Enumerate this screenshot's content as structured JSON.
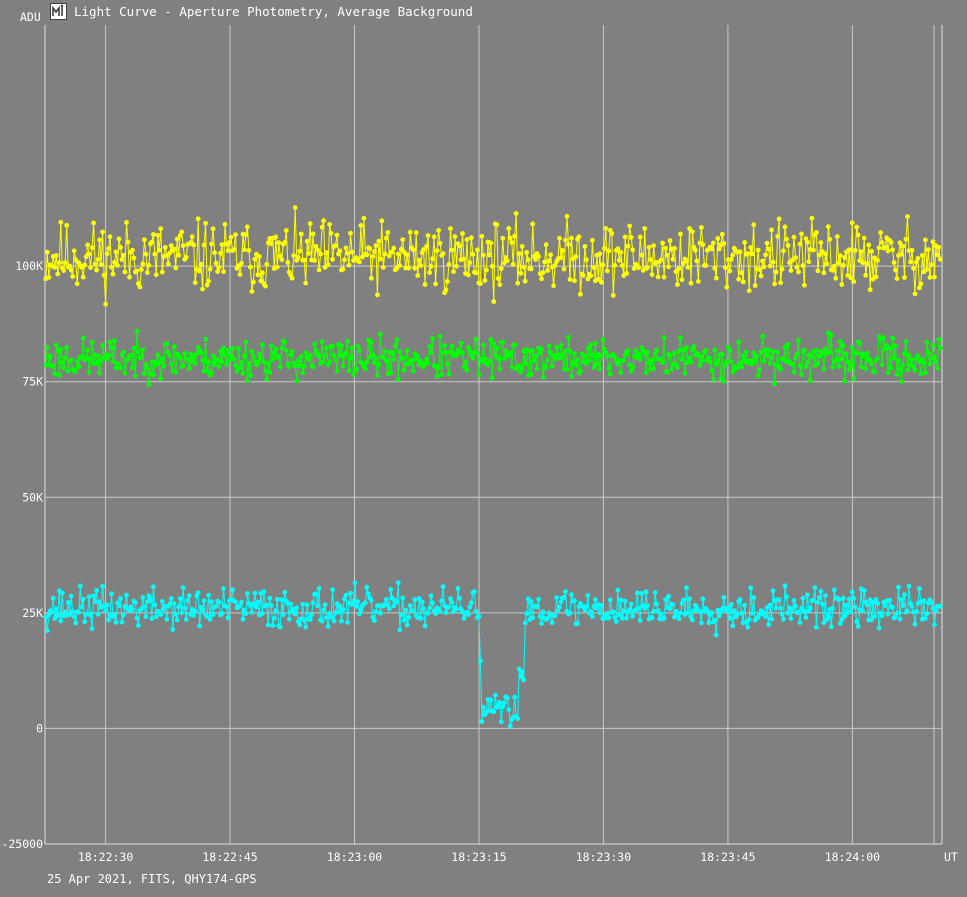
{
  "window": {
    "title": "Light Curve - Aperture Photometry, Average Background",
    "footer": "25 Apr 2021, FITS, QHY174-GPS",
    "icon": "light-curve-app-icon"
  },
  "chart_data": {
    "type": "scatter",
    "title": "Light Curve - Aperture Photometry, Average Background",
    "xlabel": "UT",
    "ylabel": "ADU",
    "xlim": [
      "18:22:22.7",
      "18:24:10.8"
    ],
    "ylim": [
      -25000,
      150000
    ],
    "yticks": [
      -25000,
      0,
      25000,
      50000,
      75000,
      100000
    ],
    "ytick_labels": [
      "-25000",
      "0",
      "25K",
      "50K",
      "75K",
      "100K"
    ],
    "xticks": [
      "18:22:30",
      "18:22:45",
      "18:23:00",
      "18:23:15",
      "18:23:30",
      "18:23:45",
      "18:24:00"
    ],
    "grid": true,
    "series": [
      {
        "color": "#ffff00",
        "points": 600,
        "seed": 11,
        "baseline": 102000,
        "scatter": 7000
      },
      {
        "color": "#00ff00",
        "points": 600,
        "seed": 23,
        "baseline": 80000,
        "scatter": 4000
      },
      {
        "color": "#00ffff",
        "points": 600,
        "seed": 37,
        "baseline": 26000,
        "scatter": 4000,
        "occultation": {
          "start": "18:23:15.0",
          "end": "18:23:20.4",
          "level": 4000,
          "scatter": 2500
        }
      }
    ]
  }
}
